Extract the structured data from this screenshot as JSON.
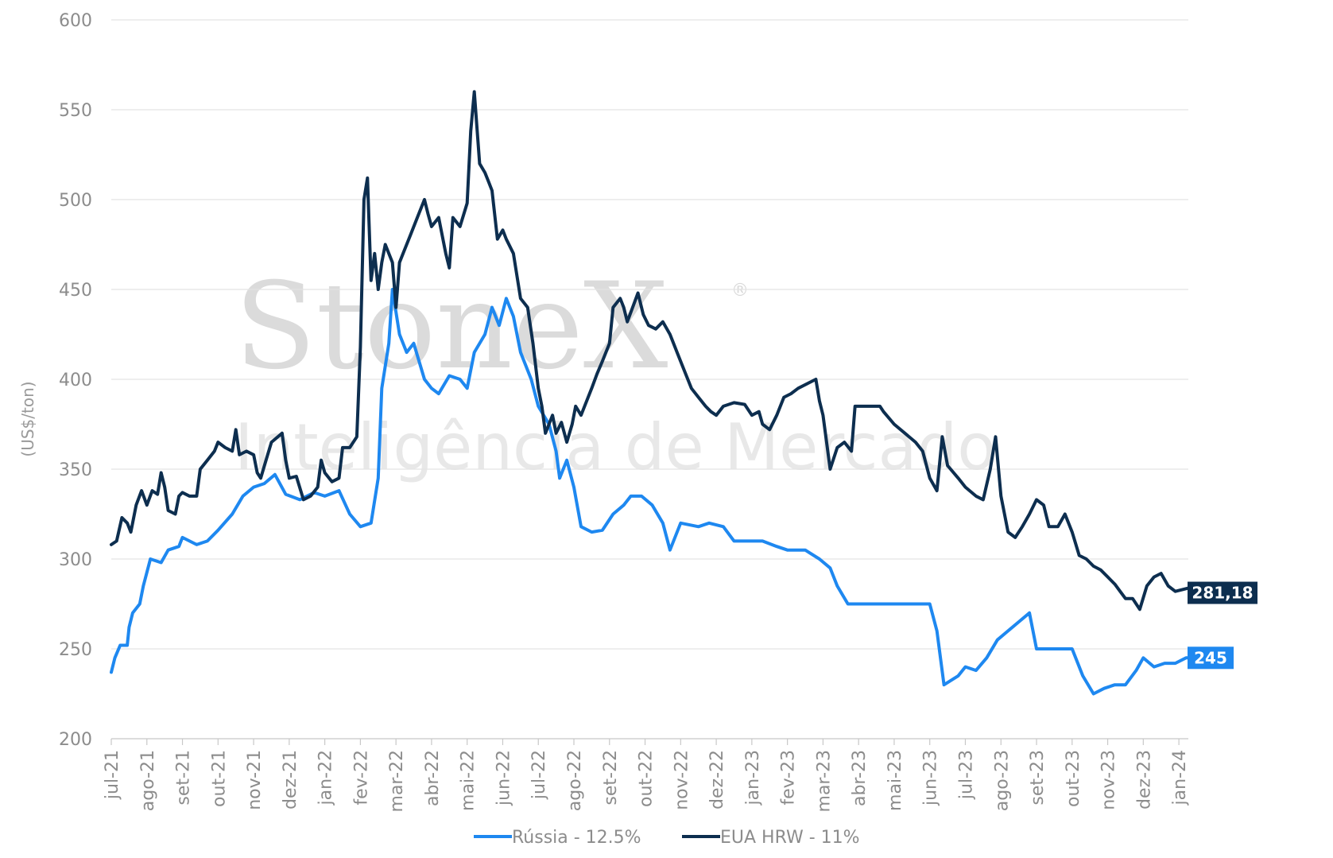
{
  "chart_data": {
    "type": "line",
    "ylabel": "(US$/ton)",
    "ylim": [
      200,
      600
    ],
    "yticks": [
      200,
      250,
      300,
      350,
      400,
      450,
      500,
      550,
      600
    ],
    "categories": [
      "jul-21",
      "ago-21",
      "set-21",
      "out-21",
      "nov-21",
      "dez-21",
      "jan-22",
      "fev-22",
      "mar-22",
      "abr-22",
      "mai-22",
      "jun-22",
      "jul-22",
      "ago-22",
      "set-22",
      "out-22",
      "nov-22",
      "dez-22",
      "jan-23",
      "fev-23",
      "mar-23",
      "abr-23",
      "mai-23",
      "jun-23",
      "jul-23",
      "ago-23",
      "set-23",
      "out-23",
      "nov-23",
      "dez-23",
      "jan-24"
    ],
    "grid": true,
    "legend_position": "bottom",
    "watermark": {
      "brand": "StoneX",
      "registered": "®",
      "subtitle": "Inteligência de Mercado"
    },
    "series": [
      {
        "name": "Rússia - 12.5%",
        "color": "#1e88f0",
        "end_label": "245",
        "points": [
          [
            0,
            237
          ],
          [
            0.1,
            245
          ],
          [
            0.25,
            252
          ],
          [
            0.45,
            252
          ],
          [
            0.5,
            262
          ],
          [
            0.6,
            270
          ],
          [
            0.8,
            275
          ],
          [
            0.9,
            285
          ],
          [
            1.1,
            300
          ],
          [
            1.4,
            298
          ],
          [
            1.6,
            305
          ],
          [
            1.9,
            307
          ],
          [
            2.0,
            312
          ],
          [
            2.4,
            308
          ],
          [
            2.7,
            310
          ],
          [
            3.0,
            316
          ],
          [
            3.4,
            325
          ],
          [
            3.7,
            335
          ],
          [
            4.0,
            340
          ],
          [
            4.3,
            342
          ],
          [
            4.6,
            347
          ],
          [
            4.9,
            336
          ],
          [
            5.3,
            333
          ],
          [
            5.7,
            337
          ],
          [
            6.0,
            335
          ],
          [
            6.4,
            338
          ],
          [
            6.7,
            325
          ],
          [
            7.0,
            318
          ],
          [
            7.3,
            320
          ],
          [
            7.5,
            345
          ],
          [
            7.6,
            395
          ],
          [
            7.8,
            420
          ],
          [
            7.9,
            450
          ],
          [
            8.1,
            425
          ],
          [
            8.3,
            415
          ],
          [
            8.5,
            420
          ],
          [
            8.8,
            400
          ],
          [
            9.0,
            395
          ],
          [
            9.2,
            392
          ],
          [
            9.5,
            402
          ],
          [
            9.8,
            400
          ],
          [
            10.0,
            395
          ],
          [
            10.2,
            415
          ],
          [
            10.5,
            425
          ],
          [
            10.7,
            440
          ],
          [
            10.9,
            430
          ],
          [
            11.1,
            445
          ],
          [
            11.3,
            435
          ],
          [
            11.5,
            415
          ],
          [
            11.8,
            400
          ],
          [
            12.0,
            385
          ],
          [
            12.3,
            375
          ],
          [
            12.5,
            360
          ],
          [
            12.6,
            345
          ],
          [
            12.8,
            355
          ],
          [
            13.0,
            340
          ],
          [
            13.2,
            318
          ],
          [
            13.5,
            315
          ],
          [
            13.8,
            316
          ],
          [
            14.1,
            325
          ],
          [
            14.4,
            330
          ],
          [
            14.6,
            335
          ],
          [
            14.9,
            335
          ],
          [
            15.2,
            330
          ],
          [
            15.5,
            320
          ],
          [
            15.7,
            305
          ],
          [
            16.0,
            320
          ],
          [
            16.5,
            318
          ],
          [
            16.8,
            320
          ],
          [
            17.2,
            318
          ],
          [
            17.5,
            310
          ],
          [
            18.0,
            310
          ],
          [
            18.3,
            310
          ],
          [
            18.7,
            307
          ],
          [
            19.0,
            305
          ],
          [
            19.5,
            305
          ],
          [
            19.9,
            300
          ],
          [
            20.2,
            295
          ],
          [
            20.4,
            285
          ],
          [
            20.7,
            275
          ],
          [
            21.0,
            275
          ],
          [
            21.5,
            275
          ],
          [
            22.0,
            275
          ],
          [
            22.5,
            275
          ],
          [
            23.0,
            275
          ],
          [
            23.2,
            260
          ],
          [
            23.4,
            230
          ],
          [
            23.8,
            235
          ],
          [
            24.0,
            240
          ],
          [
            24.3,
            238
          ],
          [
            24.6,
            245
          ],
          [
            24.9,
            255
          ],
          [
            25.2,
            260
          ],
          [
            25.5,
            265
          ],
          [
            25.8,
            270
          ],
          [
            26.0,
            250
          ],
          [
            26.3,
            250
          ],
          [
            26.7,
            250
          ],
          [
            27.0,
            250
          ],
          [
            27.3,
            235
          ],
          [
            27.6,
            225
          ],
          [
            27.9,
            228
          ],
          [
            28.2,
            230
          ],
          [
            28.5,
            230
          ],
          [
            28.8,
            238
          ],
          [
            29.0,
            245
          ],
          [
            29.3,
            240
          ],
          [
            29.6,
            242
          ],
          [
            29.9,
            242
          ],
          [
            30.2,
            245
          ],
          [
            30.4,
            245
          ]
        ]
      },
      {
        "name": "EUA HRW - 11%",
        "color": "#0d2e4f",
        "end_label": "281,18",
        "points": [
          [
            0,
            308
          ],
          [
            0.15,
            310
          ],
          [
            0.3,
            323
          ],
          [
            0.45,
            320
          ],
          [
            0.55,
            315
          ],
          [
            0.7,
            330
          ],
          [
            0.85,
            338
          ],
          [
            1.0,
            330
          ],
          [
            1.15,
            338
          ],
          [
            1.3,
            336
          ],
          [
            1.4,
            348
          ],
          [
            1.5,
            340
          ],
          [
            1.6,
            327
          ],
          [
            1.8,
            325
          ],
          [
            1.9,
            335
          ],
          [
            2.0,
            337
          ],
          [
            2.2,
            335
          ],
          [
            2.4,
            335
          ],
          [
            2.5,
            350
          ],
          [
            2.7,
            355
          ],
          [
            2.9,
            360
          ],
          [
            3.0,
            365
          ],
          [
            3.2,
            362
          ],
          [
            3.4,
            360
          ],
          [
            3.5,
            372
          ],
          [
            3.6,
            358
          ],
          [
            3.8,
            360
          ],
          [
            4.0,
            358
          ],
          [
            4.1,
            348
          ],
          [
            4.2,
            345
          ],
          [
            4.35,
            355
          ],
          [
            4.5,
            365
          ],
          [
            4.8,
            370
          ],
          [
            4.9,
            355
          ],
          [
            5.0,
            345
          ],
          [
            5.2,
            346
          ],
          [
            5.4,
            333
          ],
          [
            5.6,
            335
          ],
          [
            5.8,
            340
          ],
          [
            5.9,
            355
          ],
          [
            6.0,
            348
          ],
          [
            6.2,
            343
          ],
          [
            6.4,
            345
          ],
          [
            6.5,
            362
          ],
          [
            6.7,
            362
          ],
          [
            6.9,
            368
          ],
          [
            7.0,
            418
          ],
          [
            7.1,
            500
          ],
          [
            7.2,
            512
          ],
          [
            7.3,
            455
          ],
          [
            7.4,
            470
          ],
          [
            7.5,
            450
          ],
          [
            7.6,
            465
          ],
          [
            7.7,
            475
          ],
          [
            7.9,
            465
          ],
          [
            8.0,
            440
          ],
          [
            8.1,
            465
          ],
          [
            8.2,
            470
          ],
          [
            8.4,
            480
          ],
          [
            8.6,
            490
          ],
          [
            8.8,
            500
          ],
          [
            8.9,
            492
          ],
          [
            9.0,
            485
          ],
          [
            9.2,
            490
          ],
          [
            9.4,
            470
          ],
          [
            9.5,
            462
          ],
          [
            9.6,
            490
          ],
          [
            9.8,
            485
          ],
          [
            10.0,
            498
          ],
          [
            10.1,
            538
          ],
          [
            10.2,
            560
          ],
          [
            10.35,
            520
          ],
          [
            10.5,
            515
          ],
          [
            10.6,
            510
          ],
          [
            10.7,
            505
          ],
          [
            10.85,
            478
          ],
          [
            11.0,
            483
          ],
          [
            11.1,
            478
          ],
          [
            11.3,
            470
          ],
          [
            11.5,
            445
          ],
          [
            11.7,
            440
          ],
          [
            11.85,
            420
          ],
          [
            12.0,
            395
          ],
          [
            12.1,
            385
          ],
          [
            12.2,
            370
          ],
          [
            12.4,
            380
          ],
          [
            12.5,
            370
          ],
          [
            12.65,
            376
          ],
          [
            12.8,
            365
          ],
          [
            12.95,
            375
          ],
          [
            13.05,
            385
          ],
          [
            13.2,
            380
          ],
          [
            13.4,
            390
          ],
          [
            13.5,
            395
          ],
          [
            13.65,
            403
          ],
          [
            13.8,
            410
          ],
          [
            14.0,
            420
          ],
          [
            14.1,
            440
          ],
          [
            14.3,
            445
          ],
          [
            14.4,
            440
          ],
          [
            14.5,
            432
          ],
          [
            14.65,
            440
          ],
          [
            14.8,
            448
          ],
          [
            14.95,
            436
          ],
          [
            15.1,
            430
          ],
          [
            15.3,
            428
          ],
          [
            15.5,
            432
          ],
          [
            15.7,
            425
          ],
          [
            15.9,
            415
          ],
          [
            16.1,
            405
          ],
          [
            16.3,
            395
          ],
          [
            16.5,
            390
          ],
          [
            16.7,
            385
          ],
          [
            16.85,
            382
          ],
          [
            17.0,
            380
          ],
          [
            17.2,
            385
          ],
          [
            17.5,
            387
          ],
          [
            17.8,
            386
          ],
          [
            18.0,
            380
          ],
          [
            18.2,
            382
          ],
          [
            18.3,
            375
          ],
          [
            18.5,
            372
          ],
          [
            18.7,
            380
          ],
          [
            18.9,
            390
          ],
          [
            19.1,
            392
          ],
          [
            19.3,
            395
          ],
          [
            19.6,
            398
          ],
          [
            19.8,
            400
          ],
          [
            19.9,
            388
          ],
          [
            20.0,
            380
          ],
          [
            20.2,
            350
          ],
          [
            20.4,
            362
          ],
          [
            20.6,
            365
          ],
          [
            20.8,
            360
          ],
          [
            20.9,
            385
          ],
          [
            21.1,
            385
          ],
          [
            21.4,
            385
          ],
          [
            21.6,
            385
          ],
          [
            21.7,
            382
          ],
          [
            22.0,
            375
          ],
          [
            22.3,
            370
          ],
          [
            22.6,
            365
          ],
          [
            22.8,
            360
          ],
          [
            23.0,
            345
          ],
          [
            23.2,
            338
          ],
          [
            23.35,
            368
          ],
          [
            23.5,
            352
          ],
          [
            23.8,
            345
          ],
          [
            24.0,
            340
          ],
          [
            24.3,
            335
          ],
          [
            24.5,
            333
          ],
          [
            24.7,
            350
          ],
          [
            24.85,
            368
          ],
          [
            25.0,
            335
          ],
          [
            25.2,
            315
          ],
          [
            25.4,
            312
          ],
          [
            25.6,
            318
          ],
          [
            25.8,
            325
          ],
          [
            26.0,
            333
          ],
          [
            26.2,
            330
          ],
          [
            26.35,
            318
          ],
          [
            26.6,
            318
          ],
          [
            26.8,
            325
          ],
          [
            27.0,
            315
          ],
          [
            27.2,
            302
          ],
          [
            27.4,
            300
          ],
          [
            27.6,
            296
          ],
          [
            27.8,
            294
          ],
          [
            28.0,
            290
          ],
          [
            28.2,
            286
          ],
          [
            28.35,
            282
          ],
          [
            28.5,
            278
          ],
          [
            28.7,
            278
          ],
          [
            28.9,
            272
          ],
          [
            29.1,
            285
          ],
          [
            29.3,
            290
          ],
          [
            29.5,
            292
          ],
          [
            29.7,
            285
          ],
          [
            29.9,
            282
          ],
          [
            30.1,
            283
          ],
          [
            30.3,
            284
          ],
          [
            30.4,
            281.18
          ]
        ]
      }
    ]
  }
}
